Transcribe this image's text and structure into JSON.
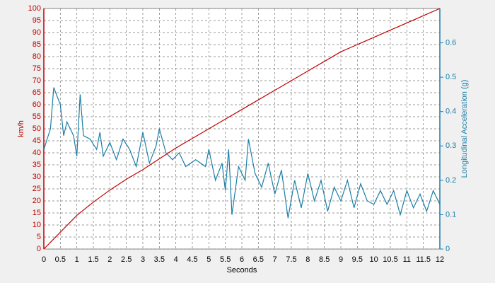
{
  "chart_data": {
    "type": "line",
    "xlabel": "Seconds",
    "ylabel": "km/h",
    "y2label": "Longitudinal Acceleration (g)",
    "xlim": [
      0,
      12
    ],
    "xticks": [
      0,
      0.5,
      1,
      1.5,
      2,
      2.5,
      3,
      3.5,
      4,
      4.5,
      5,
      5.5,
      6,
      6.5,
      7,
      7.5,
      8,
      8.5,
      9,
      9.5,
      10,
      10.5,
      11,
      11.5,
      12
    ],
    "ylim": [
      0,
      100
    ],
    "yticks": [
      0,
      5,
      10,
      15,
      20,
      25,
      30,
      35,
      40,
      45,
      50,
      55,
      60,
      65,
      70,
      75,
      80,
      85,
      90,
      95,
      100
    ],
    "y2lim": [
      0,
      0.7
    ],
    "y2ticks": [
      0,
      0.1,
      0.2,
      0.3,
      0.4,
      0.5,
      0.6
    ],
    "grid": true,
    "ycolor": "#c00000",
    "y2color": "#1a7fa8",
    "series": [
      {
        "color": "#c00000",
        "axis": "y",
        "x": [
          0,
          0.5,
          1,
          1.5,
          2,
          2.5,
          3,
          3.5,
          4,
          4.5,
          5,
          5.5,
          6,
          6.5,
          7,
          7.5,
          8,
          8.5,
          9,
          9.5,
          10,
          10.5,
          11,
          11.5,
          12
        ],
        "values": [
          0,
          7,
          14,
          19.5,
          24.5,
          29,
          33,
          37.5,
          42,
          46,
          50,
          54,
          58,
          62,
          66,
          70,
          74,
          78,
          82,
          85,
          88,
          91,
          94,
          97,
          100
        ]
      },
      {
        "color": "#1a7fa8",
        "axis": "y2",
        "x": [
          0,
          0.2,
          0.3,
          0.5,
          0.6,
          0.7,
          0.9,
          1.0,
          1.1,
          1.2,
          1.4,
          1.6,
          1.7,
          1.8,
          2.0,
          2.2,
          2.4,
          2.6,
          2.8,
          3.0,
          3.2,
          3.4,
          3.5,
          3.7,
          3.9,
          4.1,
          4.3,
          4.6,
          4.9,
          5.0,
          5.2,
          5.4,
          5.5,
          5.6,
          5.7,
          5.9,
          6.1,
          6.2,
          6.4,
          6.6,
          6.8,
          7.0,
          7.2,
          7.4,
          7.6,
          7.8,
          8.0,
          8.2,
          8.4,
          8.6,
          8.8,
          9.0,
          9.2,
          9.4,
          9.6,
          9.8,
          10.0,
          10.2,
          10.4,
          10.6,
          10.8,
          11.0,
          11.2,
          11.4,
          11.6,
          11.8,
          12.0
        ],
        "values": [
          0.29,
          0.35,
          0.47,
          0.42,
          0.33,
          0.37,
          0.33,
          0.27,
          0.45,
          0.33,
          0.32,
          0.29,
          0.34,
          0.27,
          0.31,
          0.26,
          0.32,
          0.29,
          0.24,
          0.34,
          0.25,
          0.3,
          0.35,
          0.28,
          0.26,
          0.28,
          0.24,
          0.26,
          0.24,
          0.29,
          0.2,
          0.25,
          0.17,
          0.29,
          0.1,
          0.24,
          0.2,
          0.32,
          0.22,
          0.18,
          0.25,
          0.16,
          0.23,
          0.09,
          0.2,
          0.12,
          0.22,
          0.14,
          0.2,
          0.11,
          0.18,
          0.14,
          0.2,
          0.12,
          0.19,
          0.14,
          0.13,
          0.17,
          0.13,
          0.17,
          0.1,
          0.17,
          0.12,
          0.16,
          0.11,
          0.17,
          0.13
        ]
      }
    ]
  }
}
